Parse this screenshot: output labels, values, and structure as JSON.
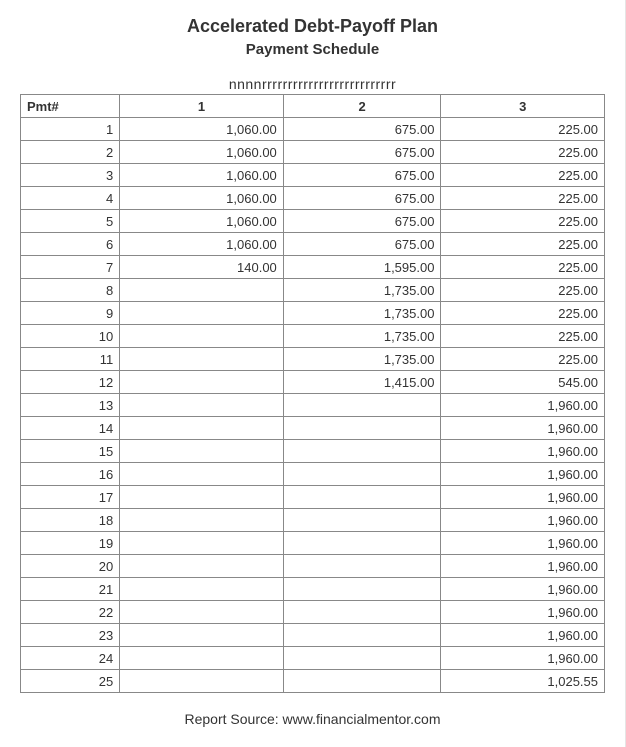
{
  "header": {
    "title": "Accelerated Debt-Payoff Plan",
    "subtitle": "Payment Schedule",
    "subnote": "nnnnrrrrrrrrrrrrrrrrrrrrrrrrrr"
  },
  "table": {
    "column_widths_pct": [
      17,
      28,
      27,
      28
    ],
    "header_cells": [
      "Pmt#",
      "1",
      "2",
      "3"
    ],
    "rows": [
      {
        "pmt": "1",
        "c1": "1,060.00",
        "c2": "675.00",
        "c3": "225.00"
      },
      {
        "pmt": "2",
        "c1": "1,060.00",
        "c2": "675.00",
        "c3": "225.00"
      },
      {
        "pmt": "3",
        "c1": "1,060.00",
        "c2": "675.00",
        "c3": "225.00"
      },
      {
        "pmt": "4",
        "c1": "1,060.00",
        "c2": "675.00",
        "c3": "225.00"
      },
      {
        "pmt": "5",
        "c1": "1,060.00",
        "c2": "675.00",
        "c3": "225.00"
      },
      {
        "pmt": "6",
        "c1": "1,060.00",
        "c2": "675.00",
        "c3": "225.00"
      },
      {
        "pmt": "7",
        "c1": "140.00",
        "c2": "1,595.00",
        "c3": "225.00"
      },
      {
        "pmt": "8",
        "c1": "",
        "c2": "1,735.00",
        "c3": "225.00"
      },
      {
        "pmt": "9",
        "c1": "",
        "c2": "1,735.00",
        "c3": "225.00"
      },
      {
        "pmt": "10",
        "c1": "",
        "c2": "1,735.00",
        "c3": "225.00"
      },
      {
        "pmt": "11",
        "c1": "",
        "c2": "1,735.00",
        "c3": "225.00"
      },
      {
        "pmt": "12",
        "c1": "",
        "c2": "1,415.00",
        "c3": "545.00"
      },
      {
        "pmt": "13",
        "c1": "",
        "c2": "",
        "c3": "1,960.00"
      },
      {
        "pmt": "14",
        "c1": "",
        "c2": "",
        "c3": "1,960.00"
      },
      {
        "pmt": "15",
        "c1": "",
        "c2": "",
        "c3": "1,960.00"
      },
      {
        "pmt": "16",
        "c1": "",
        "c2": "",
        "c3": "1,960.00"
      },
      {
        "pmt": "17",
        "c1": "",
        "c2": "",
        "c3": "1,960.00"
      },
      {
        "pmt": "18",
        "c1": "",
        "c2": "",
        "c3": "1,960.00"
      },
      {
        "pmt": "19",
        "c1": "",
        "c2": "",
        "c3": "1,960.00"
      },
      {
        "pmt": "20",
        "c1": "",
        "c2": "",
        "c3": "1,960.00"
      },
      {
        "pmt": "21",
        "c1": "",
        "c2": "",
        "c3": "1,960.00"
      },
      {
        "pmt": "22",
        "c1": "",
        "c2": "",
        "c3": "1,960.00"
      },
      {
        "pmt": "23",
        "c1": "",
        "c2": "",
        "c3": "1,960.00"
      },
      {
        "pmt": "24",
        "c1": "",
        "c2": "",
        "c3": "1,960.00"
      },
      {
        "pmt": "25",
        "c1": "",
        "c2": "",
        "c3": "1,025.55"
      }
    ]
  },
  "footer": {
    "source_label": "Report Source: www.financialmentor.com"
  },
  "style": {
    "colors": {
      "text": "#333333",
      "border": "#888888",
      "background": "#ffffff",
      "page_right_border": "#e5e5e5"
    },
    "fontsizes_pt": {
      "title": 18,
      "subtitle": 15,
      "subnote": 14,
      "table": 13,
      "footer": 14
    }
  }
}
